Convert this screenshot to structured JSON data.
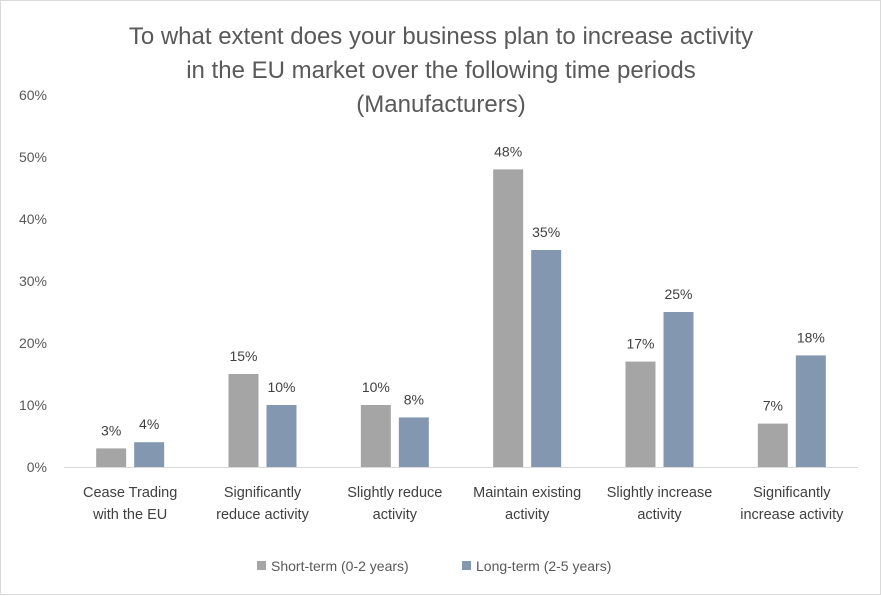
{
  "chart_data": {
    "type": "bar",
    "title": [
      "To what extent does your business plan to increase activity",
      "in the EU market over the following time periods",
      "(Manufacturers)"
    ],
    "categories": [
      [
        "Cease Trading",
        "with the EU"
      ],
      [
        "Significantly",
        "reduce activity"
      ],
      [
        "Slightly reduce",
        "activity"
      ],
      [
        "Maintain existing",
        "activity"
      ],
      [
        "Slightly increase",
        "activity"
      ],
      [
        "Significantly",
        "increase activity"
      ]
    ],
    "series": [
      {
        "name": "Short-term (0-2 years)",
        "color": "#a5a5a5",
        "values": [
          3,
          15,
          10,
          48,
          17,
          7
        ],
        "labels": [
          "3%",
          "15%",
          "10%",
          "48%",
          "17%",
          "7%"
        ]
      },
      {
        "name": "Long-term (2-5 years)",
        "color": "#8497b0",
        "values": [
          4,
          10,
          8,
          35,
          25,
          18
        ],
        "labels": [
          "4%",
          "10%",
          "8%",
          "35%",
          "25%",
          "18%"
        ]
      }
    ],
    "ylim": [
      0,
      60
    ],
    "yticks": [
      "0%",
      "10%",
      "20%",
      "30%",
      "40%",
      "50%",
      "60%"
    ],
    "legend_position": "bottom",
    "grid": false,
    "xlabel": "",
    "ylabel": ""
  }
}
